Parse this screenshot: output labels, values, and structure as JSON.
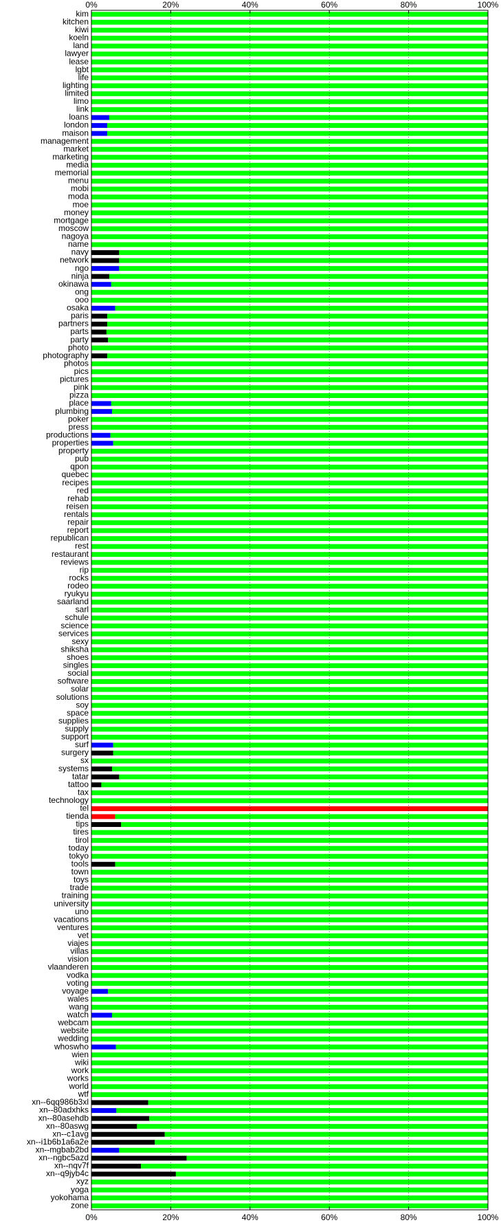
{
  "chart_data": {
    "type": "stacked-bar",
    "orientation": "horizontal",
    "categories": [
      "kim",
      "kitchen",
      "kiwi",
      "koeln",
      "land",
      "lawyer",
      "lease",
      "lgbt",
      "life",
      "lighting",
      "limited",
      "limo",
      "link",
      "loans",
      "london",
      "maison",
      "management",
      "market",
      "marketing",
      "media",
      "memorial",
      "menu",
      "mobi",
      "moda",
      "moe",
      "money",
      "mortgage",
      "moscow",
      "nagoya",
      "name",
      "navy",
      "network",
      "ngo",
      "ninja",
      "okinawa",
      "ong",
      "ooo",
      "osaka",
      "paris",
      "partners",
      "parts",
      "party",
      "photo",
      "photography",
      "photos",
      "pics",
      "pictures",
      "pink",
      "pizza",
      "place",
      "plumbing",
      "poker",
      "press",
      "productions",
      "properties",
      "property",
      "pub",
      "qpon",
      "quebec",
      "recipes",
      "red",
      "rehab",
      "reisen",
      "rentals",
      "repair",
      "report",
      "republican",
      "rest",
      "restaurant",
      "reviews",
      "rip",
      "rocks",
      "rodeo",
      "ryukyu",
      "saarland",
      "sarl",
      "schule",
      "science",
      "services",
      "sexy",
      "shiksha",
      "shoes",
      "singles",
      "social",
      "software",
      "solar",
      "solutions",
      "soy",
      "space",
      "supplies",
      "supply",
      "support",
      "surf",
      "surgery",
      "sx",
      "systems",
      "tatar",
      "tattoo",
      "tax",
      "technology",
      "tel",
      "tienda",
      "tips",
      "tires",
      "tirol",
      "today",
      "tokyo",
      "tools",
      "town",
      "toys",
      "trade",
      "training",
      "university",
      "uno",
      "vacations",
      "ventures",
      "vet",
      "viajes",
      "villas",
      "vision",
      "vlaanderen",
      "vodka",
      "voting",
      "voyage",
      "wales",
      "wang",
      "watch",
      "webcam",
      "website",
      "wedding",
      "whoswho",
      "wien",
      "wiki",
      "work",
      "works",
      "world",
      "wtf",
      "xn--6qq986b3xl",
      "xn--80adxhks",
      "xn--80asehdb",
      "xn--80aswg",
      "xn--c1avg",
      "xn--i1b6b1a6a2e",
      "xn--mgbab2bd",
      "xn--ngbc5azd",
      "xn--nqv7f",
      "xn--q9jyb4c",
      "xyz",
      "yoga",
      "yokohama",
      "zone"
    ],
    "series": [
      {
        "color": "#000000",
        "values": [
          0,
          0,
          0,
          0,
          0,
          0,
          0,
          0,
          0,
          0,
          0,
          0,
          0,
          0,
          0,
          0,
          0,
          0,
          0,
          0,
          0,
          0,
          0,
          0,
          0,
          0,
          0,
          0,
          0,
          0,
          7,
          7,
          0,
          4.5,
          0,
          0,
          0,
          0,
          4,
          4,
          3.8,
          4.2,
          0,
          4,
          0,
          0,
          0,
          0,
          0,
          0,
          0,
          0,
          0,
          0,
          0,
          0,
          0,
          0,
          0,
          0,
          0,
          0,
          0,
          0,
          0,
          0,
          0,
          0,
          0,
          0,
          0,
          0,
          0,
          0,
          0,
          0,
          0,
          0,
          0,
          0,
          0,
          0,
          0,
          0,
          0,
          0,
          0,
          0,
          0,
          0,
          0,
          0,
          0,
          5.5,
          0,
          5.2,
          7,
          2.5,
          0,
          0,
          0,
          0,
          7.5,
          0,
          0,
          0,
          0,
          6,
          0,
          0,
          0,
          0,
          0,
          0,
          0,
          0,
          0,
          0,
          0,
          0,
          0,
          0,
          0,
          0,
          0,
          0,
          0,
          0,
          0,
          0,
          0,
          0,
          0,
          0,
          0,
          0,
          0,
          14.3,
          0,
          14.6,
          11.5,
          18.5,
          16,
          0,
          24,
          12.5,
          21.3,
          0,
          0,
          0,
          0
        ]
      },
      {
        "color": "#0000ff",
        "values": [
          0,
          0,
          0,
          0,
          0,
          0,
          0,
          0,
          0,
          0,
          0,
          0,
          0,
          4.5,
          4,
          4,
          0,
          0,
          0,
          0,
          0,
          0,
          0,
          0,
          0,
          0,
          0,
          0,
          0,
          0,
          0,
          0,
          7,
          0,
          5,
          0,
          0,
          6,
          0,
          0,
          0,
          0,
          0,
          0,
          0,
          0,
          0,
          0,
          0,
          5,
          5.2,
          0,
          0,
          4.8,
          5.5,
          0,
          0,
          0,
          0,
          0,
          0,
          0,
          0,
          0,
          0,
          0,
          0,
          0,
          0,
          0,
          0,
          0,
          0,
          0,
          0,
          0,
          0,
          0,
          0,
          0,
          0,
          0,
          0,
          0,
          0,
          0,
          0,
          0,
          0,
          0,
          0,
          0,
          5.5,
          0,
          0,
          0,
          0,
          0,
          0,
          0,
          0,
          0,
          0,
          0,
          0,
          0,
          0,
          0,
          0,
          0,
          0,
          0,
          0,
          0,
          0,
          0,
          0,
          0,
          0,
          0,
          0,
          0,
          0,
          4.2,
          0,
          0,
          5.2,
          0,
          0,
          0,
          6.2,
          0,
          0,
          0,
          0,
          0,
          0,
          0,
          6.3,
          0,
          0,
          0,
          0,
          7,
          0,
          0,
          0,
          0,
          0,
          0,
          0
        ]
      },
      {
        "color": "#ff0000",
        "values": [
          0,
          0,
          0,
          0,
          0,
          0,
          0,
          0,
          0,
          0,
          0,
          0,
          0,
          0,
          0,
          0,
          0,
          0,
          0,
          0,
          0,
          0,
          0,
          0,
          0,
          0,
          0,
          0,
          0,
          0,
          0,
          0,
          0,
          0,
          0,
          0,
          0,
          0,
          0,
          0,
          0,
          0,
          0,
          0,
          0,
          0,
          0,
          0,
          0,
          0,
          0,
          0,
          0,
          0,
          0,
          0,
          0,
          0,
          0,
          0,
          0,
          0,
          0,
          0,
          0,
          0,
          0,
          0,
          0,
          0,
          0,
          0,
          0,
          0,
          0,
          0,
          0,
          0,
          0,
          0,
          0,
          0,
          0,
          0,
          0,
          0,
          0,
          0,
          0,
          0,
          0,
          0,
          0,
          0,
          0,
          0,
          0,
          0,
          0,
          0,
          100,
          6,
          0,
          0,
          0,
          0,
          0,
          0,
          0,
          0,
          0,
          0,
          0,
          0,
          0,
          0,
          0,
          0,
          0,
          0,
          0,
          0,
          0,
          0,
          0,
          0,
          0,
          0,
          0,
          0,
          0,
          0,
          0,
          0,
          0,
          0,
          0,
          0,
          0,
          0,
          0,
          0,
          0,
          0,
          0,
          0,
          0,
          0,
          0,
          0,
          0
        ]
      },
      {
        "color": "#00ff00",
        "values": [
          100,
          100,
          100,
          100,
          100,
          100,
          100,
          100,
          100,
          100,
          100,
          100,
          100,
          95.5,
          96,
          96,
          100,
          100,
          100,
          100,
          100,
          100,
          100,
          100,
          100,
          100,
          100,
          100,
          100,
          100,
          93,
          93,
          93,
          95.5,
          95,
          100,
          100,
          94,
          96,
          96,
          96.2,
          95.8,
          100,
          96,
          100,
          100,
          100,
          100,
          100,
          95,
          94.8,
          100,
          100,
          95.2,
          94.5,
          100,
          100,
          100,
          100,
          100,
          100,
          100,
          100,
          100,
          100,
          100,
          100,
          100,
          100,
          100,
          100,
          100,
          100,
          100,
          100,
          100,
          100,
          100,
          100,
          100,
          100,
          100,
          100,
          100,
          100,
          100,
          100,
          100,
          100,
          100,
          100,
          100,
          94.5,
          94.5,
          100,
          94.8,
          93,
          97.5,
          100,
          100,
          0,
          94,
          92.5,
          100,
          100,
          100,
          100,
          94,
          100,
          100,
          100,
          100,
          100,
          100,
          100,
          100,
          100,
          100,
          100,
          100,
          100,
          100,
          100,
          95.8,
          100,
          100,
          94.8,
          100,
          100,
          100,
          93.8,
          100,
          100,
          100,
          100,
          100,
          100,
          85.7,
          93.7,
          85.4,
          88.5,
          81.5,
          84,
          93,
          76,
          87.5,
          78.7,
          100,
          100,
          100,
          100
        ]
      }
    ],
    "xlim": [
      0,
      100
    ],
    "xticks": [
      {
        "value": 0,
        "label": "0%"
      },
      {
        "value": 20,
        "label": "20%"
      },
      {
        "value": 40,
        "label": "40%"
      },
      {
        "value": 60,
        "label": "60%"
      },
      {
        "value": 80,
        "label": "80%"
      },
      {
        "value": 100,
        "label": "100%"
      }
    ],
    "grid": true
  }
}
